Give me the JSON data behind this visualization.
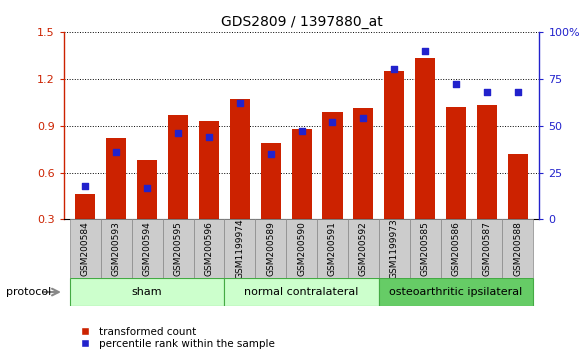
{
  "title": "GDS2809 / 1397880_at",
  "categories": [
    "GSM200584",
    "GSM200593",
    "GSM200594",
    "GSM200595",
    "GSM200596",
    "GSM1199974",
    "GSM200589",
    "GSM200590",
    "GSM200591",
    "GSM200592",
    "GSM1199973",
    "GSM200585",
    "GSM200586",
    "GSM200587",
    "GSM200588"
  ],
  "red_values": [
    0.46,
    0.82,
    0.68,
    0.97,
    0.93,
    1.07,
    0.79,
    0.88,
    0.99,
    1.01,
    1.25,
    1.33,
    1.02,
    1.03,
    0.72
  ],
  "blue_values_pct": [
    18,
    36,
    17,
    46,
    44,
    62,
    35,
    47,
    52,
    54,
    80,
    90,
    72,
    68,
    68
  ],
  "group_starts": [
    0,
    5,
    10
  ],
  "group_ends": [
    5,
    10,
    15
  ],
  "group_labels": [
    "sham",
    "normal contralateral",
    "osteoarthritic ipsilateral"
  ],
  "group_colors": [
    "#ccffcc",
    "#ccffcc",
    "#66cc66"
  ],
  "group_border_color": "#44aa44",
  "ylim_left": [
    0.3,
    1.5
  ],
  "ylim_right": [
    0,
    100
  ],
  "yticks_left": [
    0.3,
    0.6,
    0.9,
    1.2,
    1.5
  ],
  "yticks_right": [
    0,
    25,
    50,
    75,
    100
  ],
  "bar_color": "#cc2200",
  "dot_color": "#2222cc",
  "tick_bg_color": "#cccccc",
  "tick_border_color": "#888888",
  "background_color": "#ffffff",
  "legend_red": "transformed count",
  "legend_blue": "percentile rank within the sample",
  "protocol_label": "protocol"
}
